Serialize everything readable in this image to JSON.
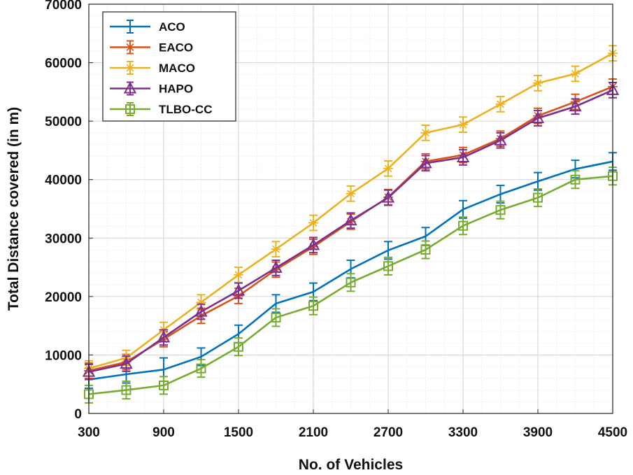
{
  "chart_data": {
    "type": "line",
    "title": "",
    "xlabel": "No. of Vehicles",
    "ylabel": "Total Distance covered (in m)",
    "x": [
      300,
      600,
      900,
      1200,
      1500,
      1800,
      2100,
      2400,
      2700,
      3000,
      3300,
      3600,
      3900,
      4200,
      4500
    ],
    "xlim": [
      300,
      4500
    ],
    "ylim": [
      0,
      70000
    ],
    "x_ticks": [
      300,
      900,
      1500,
      2100,
      2700,
      3300,
      3900,
      4500
    ],
    "y_ticks": [
      0,
      10000,
      20000,
      30000,
      40000,
      50000,
      60000,
      70000
    ],
    "x_tick_labels": [
      "300",
      "900",
      "1500",
      "2100",
      "2700",
      "3300",
      "3900",
      "4500"
    ],
    "y_tick_labels": [
      "0",
      "10000",
      "20000",
      "30000",
      "40000",
      "50000",
      "60000",
      "70000"
    ],
    "grid": true,
    "minor_grid": true,
    "legend_position": "top-left",
    "series": [
      {
        "name": "ACO",
        "color": "#0072BD",
        "marker": "errorbar",
        "values": [
          5800,
          6700,
          7500,
          9700,
          13600,
          18800,
          20800,
          24700,
          27900,
          30300,
          34900,
          37500,
          39700,
          41800,
          43100
        ],
        "errors": [
          1500,
          1500,
          2000,
          1500,
          1500,
          1500,
          1500,
          1500,
          1500,
          1500,
          1500,
          1500,
          1500,
          1500,
          1500
        ]
      },
      {
        "name": "EACO",
        "color": "#D95319",
        "marker": "star",
        "values": [
          7300,
          8800,
          12700,
          16700,
          20100,
          24600,
          28500,
          32800,
          37000,
          43100,
          44200,
          47000,
          50900,
          53300,
          55900
        ],
        "errors": [
          1300,
          1300,
          1300,
          1300,
          1300,
          1300,
          1300,
          1300,
          1300,
          1300,
          1300,
          1300,
          1300,
          1300,
          1300
        ]
      },
      {
        "name": "MACO",
        "color": "#EDB120",
        "marker": "star",
        "values": [
          7700,
          9500,
          14300,
          19000,
          23700,
          28100,
          32600,
          37600,
          41900,
          48000,
          49400,
          52900,
          56500,
          58100,
          61600
        ],
        "errors": [
          1300,
          1300,
          1300,
          1300,
          1300,
          1300,
          1300,
          1300,
          1300,
          1300,
          1300,
          1300,
          1300,
          1300,
          1300
        ]
      },
      {
        "name": "HAPO",
        "color": "#7E2F8E",
        "marker": "triangle",
        "values": [
          7100,
          8500,
          13000,
          17400,
          21000,
          24900,
          28800,
          33000,
          36900,
          42800,
          43800,
          46700,
          50500,
          52500,
          55300
        ],
        "errors": [
          1300,
          1300,
          1300,
          1300,
          1300,
          1300,
          1300,
          1300,
          1300,
          1300,
          1300,
          1300,
          1300,
          1300,
          1300
        ]
      },
      {
        "name": "TLBO-CC",
        "color": "#77AC30",
        "marker": "square",
        "values": [
          3300,
          4000,
          4800,
          7700,
          11400,
          16400,
          18400,
          22400,
          25200,
          28000,
          32100,
          34800,
          36900,
          40000,
          40600
        ],
        "errors": [
          1500,
          1500,
          1500,
          1500,
          1500,
          1500,
          1500,
          1500,
          1500,
          1500,
          1500,
          1500,
          1500,
          1500,
          1500
        ]
      }
    ]
  }
}
